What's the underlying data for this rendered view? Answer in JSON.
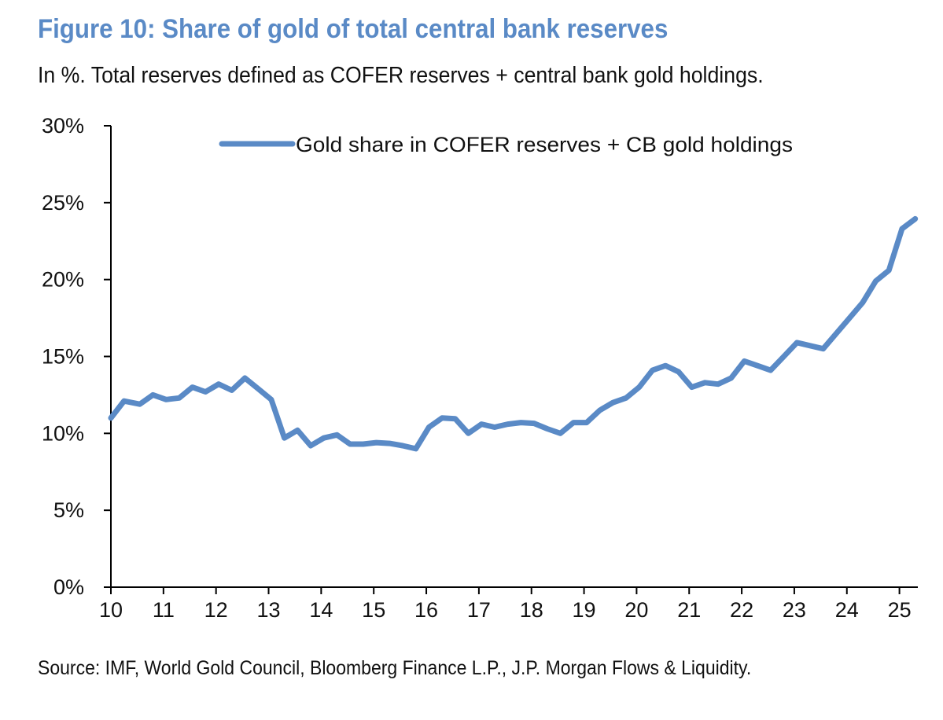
{
  "chart_data": {
    "type": "line",
    "title": "Figure 10: Share of gold of total central bank reserves",
    "subtitle": "In %. Total reserves defined as COFER reserves + central bank gold holdings.",
    "source": "Source: IMF, World Gold Council, Bloomberg Finance L.P., J.P. Morgan Flows & Liquidity.",
    "xlabel": "",
    "ylabel": "",
    "xlim": [
      10,
      25.35
    ],
    "ylim": [
      0,
      30
    ],
    "x_ticks": [
      "10",
      "11",
      "12",
      "13",
      "14",
      "15",
      "16",
      "17",
      "18",
      "19",
      "20",
      "21",
      "22",
      "23",
      "24",
      "25"
    ],
    "y_ticks": [
      "0%",
      "5%",
      "10%",
      "15%",
      "20%",
      "25%",
      "30%"
    ],
    "legend_position": "top",
    "color": "#5a8ac6",
    "series": [
      {
        "name": "Gold share in COFER reserves + CB gold holdings",
        "x": [
          10.0,
          10.25,
          10.55,
          10.8,
          11.05,
          11.3,
          11.55,
          11.8,
          12.05,
          12.3,
          12.55,
          12.8,
          13.05,
          13.3,
          13.55,
          13.8,
          14.05,
          14.3,
          14.55,
          14.8,
          15.05,
          15.3,
          15.55,
          15.8,
          16.05,
          16.3,
          16.55,
          16.8,
          17.05,
          17.3,
          17.55,
          17.8,
          18.05,
          18.3,
          18.55,
          18.8,
          19.05,
          19.3,
          19.55,
          19.8,
          20.05,
          20.3,
          20.55,
          20.8,
          21.05,
          21.3,
          21.55,
          21.8,
          22.05,
          22.3,
          22.55,
          22.8,
          23.05,
          23.3,
          23.55,
          23.8,
          24.05,
          24.3,
          24.55,
          24.8,
          25.05,
          25.3
        ],
        "values": [
          11.0,
          12.1,
          11.9,
          12.5,
          12.2,
          12.3,
          13.0,
          12.7,
          13.2,
          12.8,
          13.6,
          12.9,
          12.2,
          9.7,
          10.2,
          9.2,
          9.7,
          9.9,
          9.3,
          9.3,
          9.4,
          9.35,
          9.2,
          9.0,
          10.4,
          11.0,
          10.95,
          10.0,
          10.6,
          10.4,
          10.6,
          10.7,
          10.65,
          10.3,
          10.0,
          10.7,
          10.7,
          11.5,
          12.0,
          12.3,
          13.0,
          14.1,
          14.4,
          14.0,
          13.0,
          13.3,
          13.2,
          13.6,
          14.7,
          14.4,
          14.1,
          15.0,
          15.9,
          15.7,
          15.5,
          16.5,
          17.5,
          18.5,
          19.9,
          20.6,
          23.3,
          23.95
        ]
      }
    ]
  }
}
